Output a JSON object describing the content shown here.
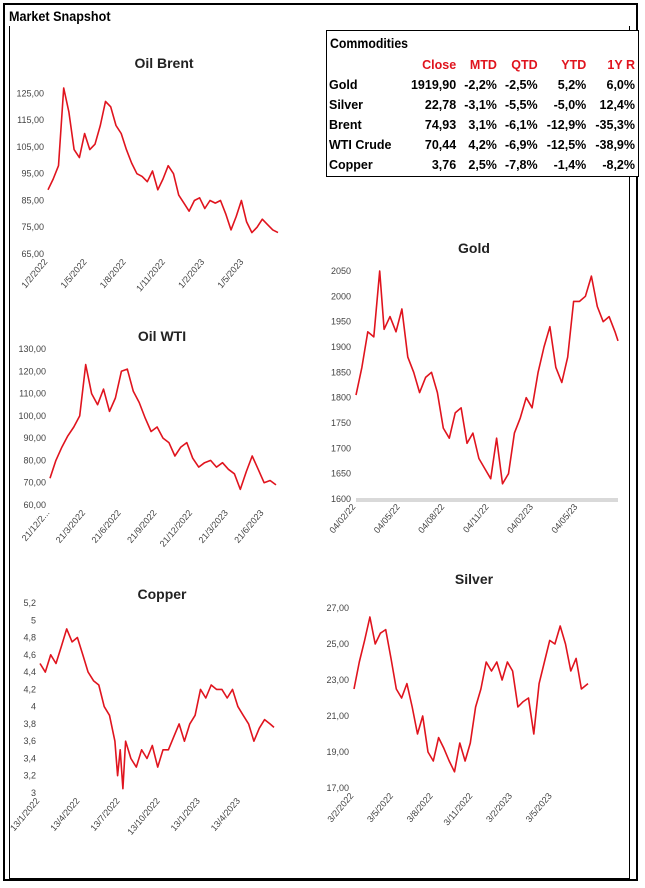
{
  "page": {
    "title": "Market Snapshot"
  },
  "commodities": {
    "title": "Commodities",
    "columns": [
      "Close",
      "MTD",
      "QTD",
      "YTD",
      "1Y R"
    ],
    "rows": [
      {
        "name": "Gold",
        "close": "1919,90",
        "mtd": "-2,2%",
        "qtd": "-2,5%",
        "ytd": "5,2%",
        "y1": "6,0%"
      },
      {
        "name": "Silver",
        "close": "22,78",
        "mtd": "-3,1%",
        "qtd": "-5,5%",
        "ytd": "-5,0%",
        "y1": "12,4%"
      },
      {
        "name": "Brent",
        "close": "74,93",
        "mtd": "3,1%",
        "qtd": "-6,1%",
        "ytd": "-12,9%",
        "y1": "-35,3%"
      },
      {
        "name": "WTI Crude",
        "close": "70,44",
        "mtd": "4,2%",
        "qtd": "-6,9%",
        "ytd": "-12,5%",
        "y1": "-38,9%"
      },
      {
        "name": "Copper",
        "close": "3,76",
        "mtd": "2,5%",
        "qtd": "-7,8%",
        "ytd": "-1,4%",
        "y1": "-8,2%"
      }
    ]
  },
  "colors": {
    "line": "#e0141e",
    "header_text": "#e0141e",
    "baseline": "#d9d9d9"
  },
  "chart_data": [
    {
      "id": "brent",
      "type": "line",
      "title": "Oil Brent",
      "series_color": "#e0141e",
      "ylim": [
        65,
        130
      ],
      "yticks": [
        "125,00",
        "115,00",
        "105,00",
        "95,00",
        "85,00",
        "75,00",
        "65,00"
      ],
      "ytick_values": [
        125,
        115,
        105,
        95,
        85,
        75,
        65
      ],
      "xticks": [
        "1/2/2022",
        "1/5/2022",
        "1/8/2022",
        "1/11/2022",
        "1/2/2023",
        "1/5/2023"
      ],
      "x_range": [
        0,
        17.6
      ],
      "xtick_positions": [
        0,
        3,
        6,
        9,
        12,
        15
      ],
      "x": [
        0,
        0.4,
        0.8,
        1.2,
        1.6,
        2.0,
        2.4,
        2.8,
        3.2,
        3.6,
        4.0,
        4.4,
        4.8,
        5.2,
        5.6,
        6.0,
        6.4,
        6.8,
        7.2,
        7.6,
        8.0,
        8.4,
        8.8,
        9.2,
        9.6,
        10.0,
        10.4,
        10.8,
        11.2,
        11.6,
        12.0,
        12.4,
        12.8,
        13.2,
        13.6,
        14.0,
        14.4,
        14.8,
        15.2,
        15.6,
        16.0,
        16.4,
        16.8,
        17.2,
        17.6
      ],
      "y": [
        89,
        93,
        98,
        127,
        118,
        104,
        101,
        110,
        104,
        106,
        113,
        122,
        120,
        113,
        110,
        104,
        99,
        95,
        94,
        92,
        96,
        89,
        93,
        98,
        95,
        87,
        84,
        81,
        85,
        86,
        82,
        85,
        84,
        85,
        80,
        74,
        79,
        85,
        77,
        73,
        75,
        78,
        76,
        74,
        73
      ]
    },
    {
      "id": "wti",
      "type": "line",
      "title": "Oil WTI",
      "series_color": "#e0141e",
      "ylim": [
        60,
        130
      ],
      "yticks": [
        "130,00",
        "120,00",
        "110,00",
        "100,00",
        "90,00",
        "80,00",
        "70,00",
        "60,00"
      ],
      "ytick_values": [
        130,
        120,
        110,
        100,
        90,
        80,
        70,
        60
      ],
      "xticks": [
        "21/12/2...",
        "21/3/2022",
        "21/6/2022",
        "21/9/2022",
        "21/12/2022",
        "21/3/2023",
        "21/6/2023"
      ],
      "x_range": [
        0,
        19
      ],
      "xtick_positions": [
        0,
        3,
        6,
        9,
        12,
        15,
        18
      ],
      "x": [
        0,
        0.5,
        1,
        1.5,
        2,
        2.5,
        3,
        3.5,
        4,
        4.5,
        5,
        5.5,
        6,
        6.5,
        7,
        7.5,
        8,
        8.5,
        9,
        9.5,
        10,
        10.5,
        11,
        11.5,
        12,
        12.5,
        13,
        13.5,
        14,
        14.5,
        15,
        15.5,
        16,
        16.5,
        17,
        17.5,
        18,
        18.5,
        19
      ],
      "y": [
        72,
        80,
        86,
        91,
        95,
        100,
        123,
        110,
        105,
        112,
        102,
        108,
        120,
        121,
        111,
        106,
        99,
        93,
        95,
        90,
        88,
        82,
        86,
        88,
        81,
        77,
        79,
        80,
        77,
        79,
        76,
        74,
        67,
        75,
        82,
        76,
        70,
        71,
        69
      ]
    },
    {
      "id": "gold",
      "type": "line",
      "title": "Gold",
      "series_color": "#e0141e",
      "ylim": [
        1600,
        2050
      ],
      "yticks": [
        "2050",
        "2000",
        "1950",
        "1900",
        "1850",
        "1800",
        "1750",
        "1700",
        "1650",
        "1600"
      ],
      "ytick_values": [
        2050,
        2000,
        1950,
        1900,
        1850,
        1800,
        1750,
        1700,
        1650,
        1600
      ],
      "xticks": [
        "04/02/22",
        "04/05/22",
        "04/08/22",
        "04/11/22",
        "04/02/23",
        "04/05/23"
      ],
      "x_range": [
        0,
        17.7
      ],
      "xtick_positions": [
        0,
        3,
        6,
        9,
        12,
        15
      ],
      "x": [
        0,
        0.4,
        0.8,
        1.2,
        1.6,
        1.9,
        2.3,
        2.7,
        3.1,
        3.5,
        3.9,
        4.3,
        4.7,
        5.1,
        5.5,
        5.9,
        6.3,
        6.7,
        7.1,
        7.5,
        7.9,
        8.3,
        8.7,
        9.1,
        9.5,
        9.9,
        10.3,
        10.7,
        11.1,
        11.5,
        11.9,
        12.3,
        12.7,
        13.1,
        13.5,
        13.9,
        14.3,
        14.7,
        15.1,
        15.5,
        15.9,
        16.3,
        16.7,
        17.1,
        17.5,
        17.7
      ],
      "y": [
        1805,
        1860,
        1930,
        1920,
        2050,
        1935,
        1960,
        1930,
        1975,
        1880,
        1850,
        1810,
        1840,
        1850,
        1810,
        1740,
        1720,
        1770,
        1780,
        1710,
        1730,
        1680,
        1660,
        1640,
        1720,
        1630,
        1650,
        1730,
        1760,
        1800,
        1780,
        1850,
        1900,
        1940,
        1860,
        1830,
        1880,
        1990,
        1990,
        2000,
        2040,
        1980,
        1950,
        1960,
        1930,
        1912
      ]
    },
    {
      "id": "copper",
      "type": "line",
      "title": "Copper",
      "series_color": "#e0141e",
      "ylim": [
        3,
        5.2
      ],
      "yticks": [
        "5,2",
        "5",
        "4,8",
        "4,6",
        "4,4",
        "4,2",
        "4",
        "3,8",
        "3,6",
        "3,4",
        "3,2",
        "3"
      ],
      "ytick_values": [
        5.2,
        5.0,
        4.8,
        4.6,
        4.4,
        4.2,
        4.0,
        3.8,
        3.6,
        3.4,
        3.2,
        3.0
      ],
      "xticks": [
        "13/1/2022",
        "13/4/2022",
        "13/7/2022",
        "13/10/2022",
        "13/1/2023",
        "13/4/2023"
      ],
      "x_range": [
        0,
        17.5
      ],
      "xtick_positions": [
        0,
        3,
        6,
        9,
        12,
        15
      ],
      "x": [
        0,
        0.4,
        0.8,
        1.2,
        1.6,
        2.0,
        2.4,
        2.8,
        3.2,
        3.6,
        4.0,
        4.4,
        4.8,
        5.2,
        5.6,
        5.8,
        6.0,
        6.2,
        6.4,
        6.8,
        7.2,
        7.6,
        8.0,
        8.4,
        8.8,
        9.2,
        9.6,
        10.0,
        10.4,
        10.8,
        11.2,
        11.6,
        12.0,
        12.4,
        12.8,
        13.2,
        13.6,
        14.0,
        14.4,
        14.8,
        15.2,
        15.6,
        16.0,
        16.4,
        16.8,
        17.2,
        17.5
      ],
      "y": [
        4.5,
        4.4,
        4.6,
        4.5,
        4.7,
        4.9,
        4.75,
        4.8,
        4.6,
        4.4,
        4.3,
        4.25,
        4.0,
        3.9,
        3.6,
        3.2,
        3.5,
        3.05,
        3.6,
        3.4,
        3.3,
        3.5,
        3.4,
        3.55,
        3.3,
        3.5,
        3.5,
        3.65,
        3.8,
        3.6,
        3.8,
        3.9,
        4.2,
        4.1,
        4.25,
        4.2,
        4.2,
        4.1,
        4.2,
        4.0,
        3.9,
        3.8,
        3.6,
        3.75,
        3.85,
        3.8,
        3.76
      ]
    },
    {
      "id": "silver",
      "type": "line",
      "title": "Silver",
      "series_color": "#e0141e",
      "ylim": [
        17,
        27
      ],
      "yticks": [
        "27,00",
        "25,00",
        "23,00",
        "21,00",
        "19,00",
        "17,00"
      ],
      "ytick_values": [
        27,
        25,
        23,
        21,
        19,
        17
      ],
      "xticks": [
        "3/2/2022",
        "3/5/2022",
        "3/8/2022",
        "3/11/2022",
        "3/2/2023",
        "3/5/2023"
      ],
      "x_range": [
        0,
        17.7
      ],
      "xtick_positions": [
        0,
        3,
        6,
        9,
        12,
        15
      ],
      "x": [
        0,
        0.4,
        0.8,
        1.2,
        1.6,
        2.0,
        2.4,
        2.8,
        3.2,
        3.6,
        4.0,
        4.4,
        4.8,
        5.2,
        5.6,
        6.0,
        6.4,
        6.8,
        7.2,
        7.6,
        8.0,
        8.4,
        8.8,
        9.2,
        9.6,
        10.0,
        10.4,
        10.8,
        11.2,
        11.6,
        12.0,
        12.4,
        12.8,
        13.2,
        13.6,
        14.0,
        14.4,
        14.8,
        15.2,
        15.6,
        16.0,
        16.4,
        16.8,
        17.2,
        17.7
      ],
      "y": [
        22.5,
        24.0,
        25.2,
        26.5,
        25.0,
        25.6,
        25.8,
        24.2,
        22.5,
        22.0,
        22.8,
        21.5,
        20.0,
        21.0,
        19.0,
        18.5,
        19.8,
        19.2,
        18.5,
        17.9,
        19.5,
        18.5,
        19.5,
        21.5,
        22.5,
        24.0,
        23.5,
        24.0,
        23.0,
        24.0,
        23.5,
        21.5,
        21.8,
        22.0,
        20.0,
        22.8,
        24.0,
        25.2,
        25.0,
        26.0,
        25.0,
        23.5,
        24.2,
        22.5,
        22.8
      ]
    }
  ]
}
